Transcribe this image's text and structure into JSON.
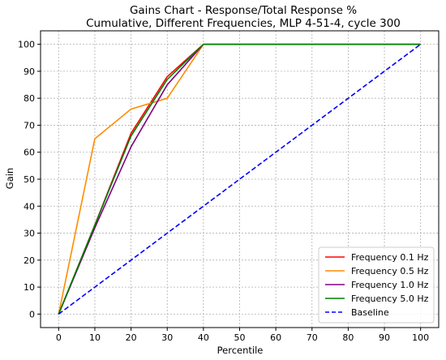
{
  "chart_data": {
    "type": "line",
    "title": "Gains Chart - Response/Total Response %",
    "subtitle": "Cumulative, Different Frequencies, MLP 4-51-4, cycle 300",
    "xlabel": "Percentile",
    "ylabel": "Gain",
    "xlim": [
      -5,
      105
    ],
    "ylim": [
      -5,
      105
    ],
    "xticks": [
      0,
      10,
      20,
      30,
      40,
      50,
      60,
      70,
      80,
      90,
      100
    ],
    "yticks": [
      0,
      10,
      20,
      30,
      40,
      50,
      60,
      70,
      80,
      90,
      100
    ],
    "grid": true,
    "legend_position": "bottom-right",
    "series": [
      {
        "name": "Frequency 0.1 Hz",
        "color": "#ff0000",
        "dash": "solid",
        "x": [
          0,
          10,
          20,
          30,
          40,
          50,
          60,
          70,
          80,
          90,
          100
        ],
        "y": [
          0,
          33,
          67,
          88,
          100,
          100,
          100,
          100,
          100,
          100,
          100
        ]
      },
      {
        "name": "Frequency 0.5 Hz",
        "color": "#ff8c00",
        "dash": "solid",
        "x": [
          0,
          10,
          20,
          30,
          40,
          50,
          60,
          70,
          80,
          90,
          100
        ],
        "y": [
          0,
          65,
          76,
          80,
          100,
          100,
          100,
          100,
          100,
          100,
          100
        ]
      },
      {
        "name": "Frequency 1.0 Hz",
        "color": "#800080",
        "dash": "solid",
        "x": [
          0,
          10,
          20,
          30,
          40,
          50,
          60,
          70,
          80,
          90,
          100
        ],
        "y": [
          0,
          32,
          62,
          85,
          100,
          100,
          100,
          100,
          100,
          100,
          100
        ]
      },
      {
        "name": "Frequency 5.0 Hz",
        "color": "#008000",
        "dash": "solid",
        "x": [
          0,
          10,
          20,
          30,
          40,
          50,
          60,
          70,
          80,
          90,
          100
        ],
        "y": [
          0,
          33,
          66,
          87,
          100,
          100,
          100,
          100,
          100,
          100,
          100
        ]
      },
      {
        "name": "Baseline",
        "color": "#0000ff",
        "dash": "dashed",
        "x": [
          0,
          100
        ],
        "y": [
          0,
          100
        ]
      }
    ]
  }
}
